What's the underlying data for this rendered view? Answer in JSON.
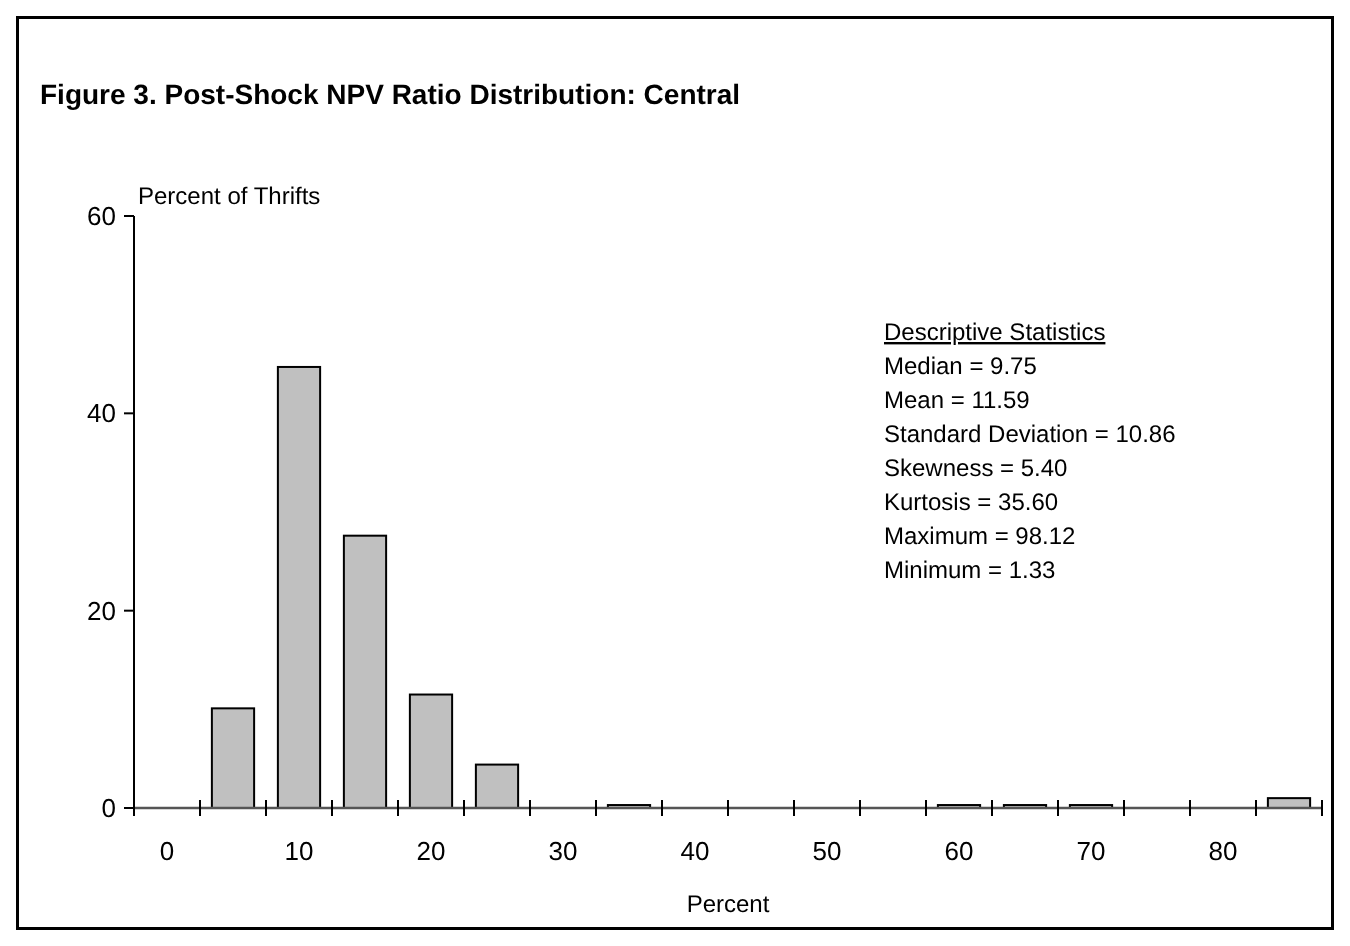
{
  "chart_data": {
    "type": "bar",
    "title": "Figure 3.  Post-Shock NPV Ratio Distribution: Central",
    "xlabel": "Percent",
    "ylabel": "Percent of Thrifts",
    "categories": [
      "0",
      null,
      "10",
      null,
      "20",
      null,
      "30",
      null,
      "40",
      null,
      "50",
      null,
      "60",
      null,
      "70",
      null,
      "80",
      null
    ],
    "values": [
      0,
      10.1,
      44.7,
      27.6,
      11.5,
      4.4,
      0,
      0.3,
      0,
      0,
      0,
      0,
      0.3,
      0.3,
      0.3,
      0,
      0,
      1.0
    ],
    "color": "#c0c0c0",
    "ylim": [
      0,
      60
    ],
    "yticks": [
      0,
      20,
      40,
      60
    ],
    "grid": false,
    "annotations": [
      "Descriptive Statistics",
      "Median  = 9.75",
      "Mean = 11.59",
      "Standard Deviation = 10.86",
      "Skewness = 5.40",
      "Kurtosis = 35.60",
      "Maximum = 98.12",
      "Minimum = 1.33"
    ]
  }
}
